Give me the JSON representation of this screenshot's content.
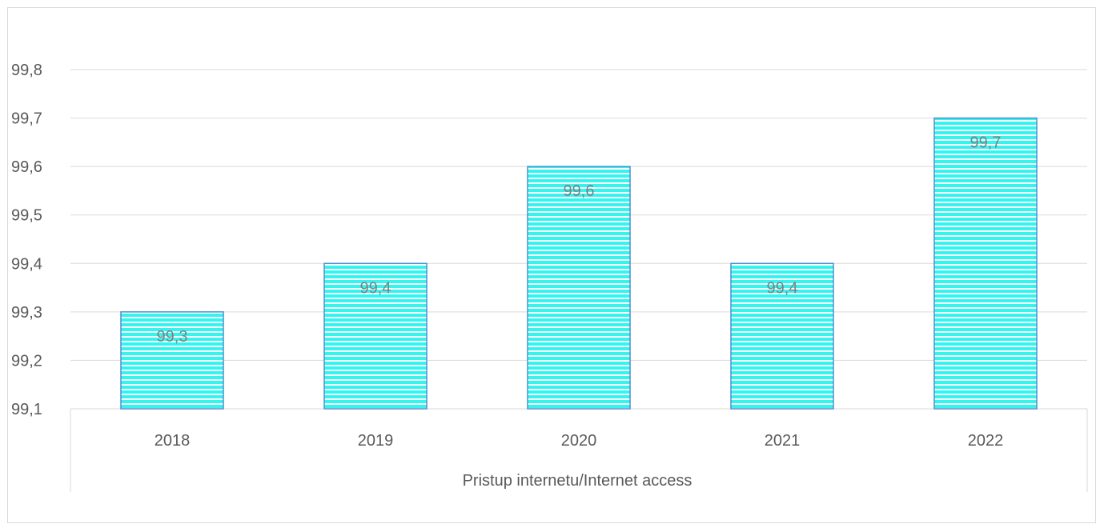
{
  "chart_data": {
    "type": "bar",
    "categories": [
      "2018",
      "2019",
      "2020",
      "2021",
      "2022"
    ],
    "values": [
      99.3,
      99.4,
      99.6,
      99.4,
      99.7
    ],
    "data_labels": [
      "99,3",
      "99,4",
      "99,6",
      "99,4",
      "99,7"
    ],
    "title": "",
    "xlabel": "Pristup internetu/Internet access",
    "ylabel": "",
    "ylim": [
      99.1,
      99.8
    ],
    "yticks": [
      99.1,
      99.2,
      99.3,
      99.4,
      99.5,
      99.6,
      99.7,
      99.8
    ],
    "ytick_labels": [
      "99,1",
      "99,2",
      "99,3",
      "99,4",
      "99,5",
      "99,6",
      "99,7",
      "99,8"
    ],
    "grid": true,
    "legend": "none",
    "colors": {
      "bar_fill": "#33f5f0",
      "bar_stripe": "#ffffff",
      "bar_border": "#4f8fcf",
      "grid": "#d9d9d9",
      "text": "#595959",
      "data_label": "#7f7f7f"
    }
  }
}
